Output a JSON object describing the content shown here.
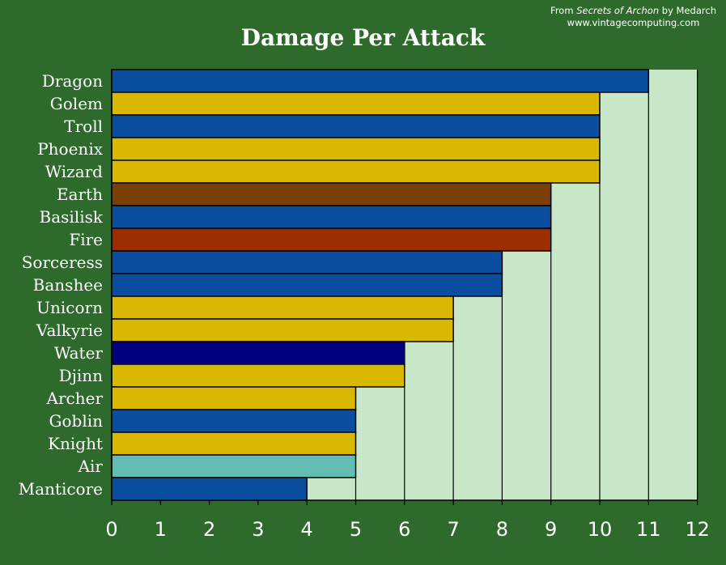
{
  "credit": {
    "prefix": "From",
    "book": "Secrets of Archon",
    "suffix": "by Medarch",
    "site": "www.vintagecomputing.com"
  },
  "chart_data": {
    "type": "bar",
    "orientation": "horizontal",
    "title": "Damage Per Attack",
    "xlabel": "",
    "ylabel": "",
    "xlim": [
      0,
      12
    ],
    "x_ticks": [
      0,
      1,
      2,
      3,
      4,
      5,
      6,
      7,
      8,
      9,
      10,
      11,
      12
    ],
    "grid": "staircase",
    "colors": {
      "background": "#2f6a2d",
      "plot_fill": "#c8e6c8",
      "blue": "#0a4ea0",
      "gold": "#d8b800",
      "brown": "#7a3f06",
      "red": "#9a2e00",
      "navy": "#00007e",
      "teal": "#62bcb2"
    },
    "bars": [
      {
        "label": "Dragon",
        "value": 11,
        "color": "#0a4ea0"
      },
      {
        "label": "Golem",
        "value": 10,
        "color": "#d8b800"
      },
      {
        "label": "Troll",
        "value": 10,
        "color": "#0a4ea0"
      },
      {
        "label": "Phoenix",
        "value": 10,
        "color": "#d8b800"
      },
      {
        "label": "Wizard",
        "value": 10,
        "color": "#d8b800"
      },
      {
        "label": "Earth",
        "value": 9,
        "color": "#7a3f06"
      },
      {
        "label": "Basilisk",
        "value": 9,
        "color": "#0a4ea0"
      },
      {
        "label": "Fire",
        "value": 9,
        "color": "#9a2e00"
      },
      {
        "label": "Sorceress",
        "value": 8,
        "color": "#0a4ea0"
      },
      {
        "label": "Banshee",
        "value": 8,
        "color": "#0a4ea0"
      },
      {
        "label": "Unicorn",
        "value": 7,
        "color": "#d8b800"
      },
      {
        "label": "Valkyrie",
        "value": 7,
        "color": "#d8b800"
      },
      {
        "label": "Water",
        "value": 6,
        "color": "#00007e"
      },
      {
        "label": "Djinn",
        "value": 6,
        "color": "#d8b800"
      },
      {
        "label": "Archer",
        "value": 5,
        "color": "#d8b800"
      },
      {
        "label": "Goblin",
        "value": 5,
        "color": "#0a4ea0"
      },
      {
        "label": "Knight",
        "value": 5,
        "color": "#d8b800"
      },
      {
        "label": "Air",
        "value": 5,
        "color": "#62bcb2"
      },
      {
        "label": "Manticore",
        "value": 4,
        "color": "#0a4ea0"
      }
    ]
  }
}
